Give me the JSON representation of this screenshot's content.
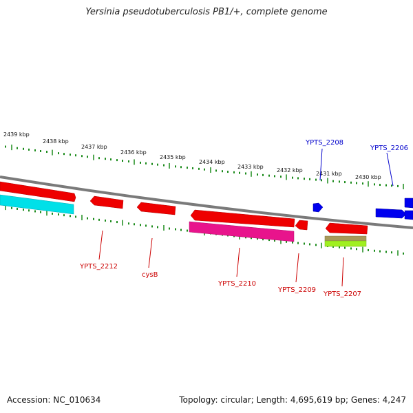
{
  "title": "Yersinia pseudotuberculosis PB1/+, complete genome",
  "footer": {
    "accession": "Accession: NC_010634",
    "summary": "Topology: circular; Length: 4,695,619 bp; Genes: 4,247"
  },
  "colors": {
    "backbone": "#7a7a7a",
    "tick": "#1a8a1a",
    "forward_gene": "#0000ee",
    "reverse_gene": "#ee0000",
    "cds_magenta": "#e8148c",
    "cds_cyan": "#00e0e8",
    "cds_olive": "#a89a5a",
    "cds_lime": "#a0f020",
    "forward_label": "#0000cc",
    "reverse_label": "#cc0000"
  },
  "scale_labels": [
    "2439 kbp",
    "2438 kbp",
    "2437 kbp",
    "2436 kbp",
    "2435 kbp",
    "2434 kbp",
    "2433 kbp",
    "2432 kbp",
    "2431 kbp",
    "2430 kbp"
  ],
  "gene_labels": {
    "ypts_2208": "YPTS_2208",
    "ypts_2206": "YPTS_2206",
    "ypts_2212": "YPTS_2212",
    "cysb": "cysB",
    "ypts_2210": "YPTS_2210",
    "ypts_2209": "YPTS_2209",
    "ypts_2207": "YPTS_2207"
  }
}
